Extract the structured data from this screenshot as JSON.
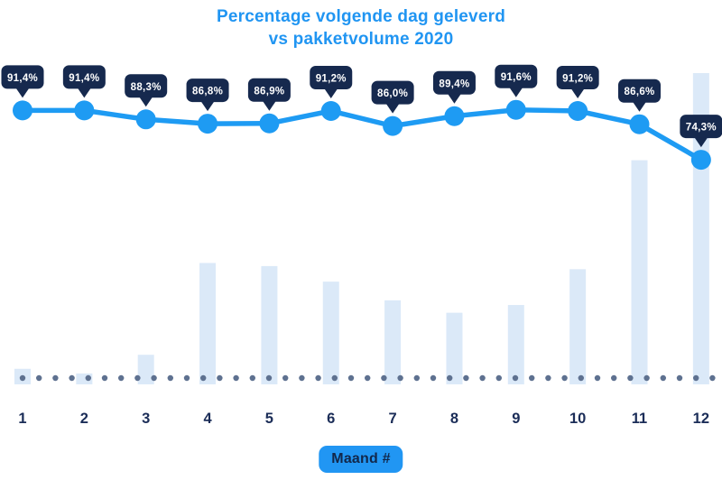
{
  "header": {
    "title_line1": "Percentage volgende dag geleverd",
    "title_line2": "vs pakketvolume 2020"
  },
  "colors": {
    "accent_blue": "#1e9bf3",
    "title_blue": "#2095f2",
    "badge_navy": "#16294e",
    "badge_text": "#ffffff",
    "bar_light_blue": "#dbe9f8",
    "baseline_dot_gray": "#5e7190",
    "axis_label_navy": "#1b2d58",
    "xaxis_badge_bg": "#2196f3",
    "xaxis_badge_text": "#12274a"
  },
  "chart_data": {
    "type": "line",
    "title": "Percentage volgende dag geleverd vs pakketvolume 2020",
    "xlabel": "Maand #",
    "ylabel": "",
    "categories": [
      "1",
      "2",
      "3",
      "4",
      "5",
      "6",
      "7",
      "8",
      "9",
      "10",
      "11",
      "12"
    ],
    "series": [
      {
        "name": "Percentage volgende dag geleverd",
        "type": "line",
        "unit": "%",
        "values": [
          91.4,
          91.4,
          88.3,
          86.8,
          86.9,
          91.2,
          86.0,
          89.4,
          91.6,
          91.2,
          86.6,
          74.3
        ],
        "labels": [
          "91,4%",
          "91,4%",
          "88,3%",
          "86,8%",
          "86,9%",
          "91,2%",
          "86,0%",
          "89,4%",
          "91,6%",
          "91,2%",
          "86,6%",
          "74,3%"
        ]
      },
      {
        "name": "Pakketvolume 2020",
        "type": "bar",
        "unit": "relative (% of max, no axis shown)",
        "values": [
          5,
          3.5,
          9.5,
          39,
          38,
          33,
          27,
          23,
          25.5,
          37,
          72,
          100
        ]
      }
    ],
    "legend": "none",
    "grid": "dotted horizontal baseline"
  }
}
